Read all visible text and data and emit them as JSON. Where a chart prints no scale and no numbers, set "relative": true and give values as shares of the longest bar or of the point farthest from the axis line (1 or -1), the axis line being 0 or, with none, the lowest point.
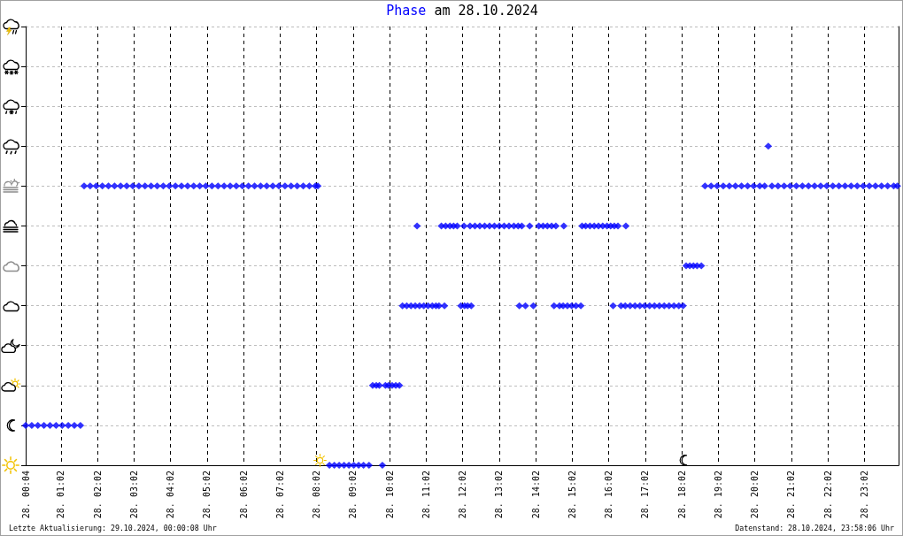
{
  "chart_data": {
    "type": "scatter",
    "title": "Phase am 28.10.2024",
    "color": "#0000ff",
    "marker": "diamond",
    "grid": true,
    "relative": true,
    "xlim": [
      "2024-10-28T00:04",
      "2024-10-28T23:58"
    ],
    "xticks": [
      {
        "value": "2024-10-28T00:04",
        "label": "28. 00:04"
      },
      {
        "value": "2024-10-28T01:02",
        "label": "28. 01:02"
      },
      {
        "value": "2024-10-28T02:02",
        "label": "28. 02:02"
      },
      {
        "value": "2024-10-28T03:02",
        "label": "28. 03:02"
      },
      {
        "value": "2024-10-28T04:02",
        "label": "28. 04:02"
      },
      {
        "value": "2024-10-28T05:02",
        "label": "28. 05:02"
      },
      {
        "value": "2024-10-28T06:02",
        "label": "28. 06:02"
      },
      {
        "value": "2024-10-28T07:02",
        "label": "28. 07:02"
      },
      {
        "value": "2024-10-28T08:02",
        "label": "28. 08:02"
      },
      {
        "value": "2024-10-28T09:02",
        "label": "28. 09:02"
      },
      {
        "value": "2024-10-28T10:02",
        "label": "28. 10:02"
      },
      {
        "value": "2024-10-28T11:02",
        "label": "28. 11:02"
      },
      {
        "value": "2024-10-28T12:02",
        "label": "28. 12:02"
      },
      {
        "value": "2024-10-28T13:02",
        "label": "28. 13:02"
      },
      {
        "value": "2024-10-28T14:02",
        "label": "28. 14:02"
      },
      {
        "value": "2024-10-28T15:02",
        "label": "28. 15:02"
      },
      {
        "value": "2024-10-28T16:02",
        "label": "28. 16:02"
      },
      {
        "value": "2024-10-28T17:02",
        "label": "28. 17:02"
      },
      {
        "value": "2024-10-28T18:02",
        "label": "28. 18:02"
      },
      {
        "value": "2024-10-28T19:02",
        "label": "28. 19:02"
      },
      {
        "value": "2024-10-28T20:02",
        "label": "28. 20:02"
      },
      {
        "value": "2024-10-28T21:02",
        "label": "28. 21:02"
      },
      {
        "value": "2024-10-28T22:02",
        "label": "28. 22:02"
      },
      {
        "value": "2024-10-28T23:02",
        "label": "28. 23:02"
      }
    ],
    "x": [
      "2024-10-28T00:04",
      "2024-10-28T00:14",
      "2024-10-28T00:24",
      "2024-10-28T00:34",
      "2024-10-28T00:44",
      "2024-10-28T00:54",
      "2024-10-28T01:04",
      "2024-10-28T01:14",
      "2024-10-28T01:24",
      "2024-10-28T01:34",
      "2024-10-28T01:40",
      "2024-10-28T01:50",
      "2024-10-28T02:00",
      "2024-10-28T02:10",
      "2024-10-28T02:20",
      "2024-10-28T02:30",
      "2024-10-28T02:40",
      "2024-10-28T02:50",
      "2024-10-28T03:00",
      "2024-10-28T03:10",
      "2024-10-28T03:20",
      "2024-10-28T03:30",
      "2024-10-28T03:40",
      "2024-10-28T03:50",
      "2024-10-28T04:00",
      "2024-10-28T04:10",
      "2024-10-28T04:20",
      "2024-10-28T04:30",
      "2024-10-28T04:40",
      "2024-10-28T04:50",
      "2024-10-28T05:00",
      "2024-10-28T05:10",
      "2024-10-28T05:20",
      "2024-10-28T05:30",
      "2024-10-28T05:40",
      "2024-10-28T05:50",
      "2024-10-28T06:00",
      "2024-10-28T06:10",
      "2024-10-28T06:20",
      "2024-10-28T06:30",
      "2024-10-28T06:40",
      "2024-10-28T06:50",
      "2024-10-28T07:00",
      "2024-10-28T07:10",
      "2024-10-28T07:20",
      "2024-10-28T07:30",
      "2024-10-28T07:40",
      "2024-10-28T07:50",
      "2024-10-28T08:00",
      "2024-10-28T08:04",
      "2024-10-28T08:23",
      "2024-10-28T08:31",
      "2024-10-28T08:39",
      "2024-10-28T08:47",
      "2024-10-28T08:55",
      "2024-10-28T09:03",
      "2024-10-28T09:11",
      "2024-10-28T09:19",
      "2024-10-28T09:28",
      "2024-10-28T09:34",
      "2024-10-28T09:40",
      "2024-10-28T09:45",
      "2024-10-28T09:50",
      "2024-10-28T09:55",
      "2024-10-28T10:00",
      "2024-10-28T10:06",
      "2024-10-28T10:12",
      "2024-10-28T10:18",
      "2024-10-28T10:23",
      "2024-10-28T10:30",
      "2024-10-28T10:37",
      "2024-10-28T10:44",
      "2024-10-28T10:47",
      "2024-10-28T10:51",
      "2024-10-28T10:58",
      "2024-10-28T11:05",
      "2024-10-28T11:12",
      "2024-10-28T11:18",
      "2024-10-28T11:23",
      "2024-10-28T11:27",
      "2024-10-28T11:32",
      "2024-10-28T11:34",
      "2024-10-28T11:41",
      "2024-10-28T11:47",
      "2024-10-28T11:53",
      "2024-10-28T11:59",
      "2024-10-28T12:04",
      "2024-10-28T12:05",
      "2024-10-28T12:10",
      "2024-10-28T12:14",
      "2024-10-28T12:16",
      "2024-10-28T12:22",
      "2024-10-28T12:30",
      "2024-10-28T12:38",
      "2024-10-28T12:46",
      "2024-10-28T12:54",
      "2024-10-28T13:02",
      "2024-10-28T13:10",
      "2024-10-28T13:18",
      "2024-10-28T13:26",
      "2024-10-28T13:33",
      "2024-10-28T13:35",
      "2024-10-28T13:39",
      "2024-10-28T13:45",
      "2024-10-28T13:52",
      "2024-10-28T13:58",
      "2024-10-28T14:07",
      "2024-10-28T14:14",
      "2024-10-28T14:21",
      "2024-10-28T14:28",
      "2024-10-28T14:32",
      "2024-10-28T14:35",
      "2024-10-28T14:41",
      "2024-10-28T14:47",
      "2024-10-28T14:48",
      "2024-10-28T14:54",
      "2024-10-28T15:01",
      "2024-10-28T15:08",
      "2024-10-28T15:16",
      "2024-10-28T15:18",
      "2024-10-28T15:24",
      "2024-10-28T15:31",
      "2024-10-28T15:38",
      "2024-10-28T15:45",
      "2024-10-28T15:52",
      "2024-10-28T15:59",
      "2024-10-28T16:05",
      "2024-10-28T16:09",
      "2024-10-28T16:11",
      "2024-10-28T16:17",
      "2024-10-28T16:22",
      "2024-10-28T16:29",
      "2024-10-28T16:30",
      "2024-10-28T16:37",
      "2024-10-28T16:45",
      "2024-10-28T16:53",
      "2024-10-28T17:01",
      "2024-10-28T17:09",
      "2024-10-28T17:17",
      "2024-10-28T17:25",
      "2024-10-28T17:33",
      "2024-10-28T17:41",
      "2024-10-28T17:49",
      "2024-10-28T17:57",
      "2024-10-28T18:04",
      "2024-10-28T18:09",
      "2024-10-28T18:15",
      "2024-10-28T18:21",
      "2024-10-28T18:27",
      "2024-10-28T18:34",
      "2024-10-28T18:40",
      "2024-10-28T18:50",
      "2024-10-28T19:00",
      "2024-10-28T19:10",
      "2024-10-28T19:20",
      "2024-10-28T19:30",
      "2024-10-28T19:40",
      "2024-10-28T19:50",
      "2024-10-28T20:00",
      "2024-10-28T20:10",
      "2024-10-28T20:18",
      "2024-10-28T20:24",
      "2024-10-28T20:30",
      "2024-10-28T20:40",
      "2024-10-28T20:50",
      "2024-10-28T21:00",
      "2024-10-28T21:10",
      "2024-10-28T21:20",
      "2024-10-28T21:30",
      "2024-10-28T21:40",
      "2024-10-28T21:50",
      "2024-10-28T22:00",
      "2024-10-28T22:10",
      "2024-10-28T22:20",
      "2024-10-28T22:30",
      "2024-10-28T22:40",
      "2024-10-28T22:50",
      "2024-10-28T23:00",
      "2024-10-28T23:10",
      "2024-10-28T23:20",
      "2024-10-28T23:30",
      "2024-10-28T23:40",
      "2024-10-28T23:50",
      "2024-10-28T23:56"
    ],
    "values": [
      0.125,
      0.125,
      0.125,
      0.125,
      0.125,
      0.125,
      0.125,
      0.125,
      0.125,
      0.125,
      0.875,
      0.875,
      0.875,
      0.875,
      0.875,
      0.875,
      0.875,
      0.875,
      0.875,
      0.875,
      0.875,
      0.875,
      0.875,
      0.875,
      0.875,
      0.875,
      0.875,
      0.875,
      0.875,
      0.875,
      0.875,
      0.875,
      0.875,
      0.875,
      0.875,
      0.875,
      0.875,
      0.875,
      0.875,
      0.875,
      0.875,
      0.875,
      0.875,
      0.875,
      0.875,
      0.875,
      0.875,
      0.875,
      0.875,
      0.875,
      0,
      0,
      0,
      0,
      0,
      0,
      0,
      0,
      0,
      0.25,
      0.25,
      0.25,
      0,
      0.25,
      0.25,
      0.25,
      0.25,
      0.25,
      0.5,
      0.5,
      0.5,
      0.5,
      0.75,
      0.5,
      0.5,
      0.5,
      0.5,
      0.5,
      0.5,
      0.75,
      0.5,
      0.75,
      0.75,
      0.75,
      0.75,
      0.5,
      0.75,
      0.5,
      0.5,
      0.75,
      0.5,
      0.75,
      0.75,
      0.75,
      0.75,
      0.75,
      0.75,
      0.75,
      0.75,
      0.75,
      0.75,
      0.5,
      0.75,
      0.5,
      0.75,
      0.5,
      0.75,
      0.75,
      0.75,
      0.75,
      0.5,
      0.75,
      0.5,
      0.5,
      0.75,
      0.5,
      0.5,
      0.5,
      0.5,
      0.75,
      0.75,
      0.75,
      0.75,
      0.75,
      0.75,
      0.75,
      0.75,
      0.5,
      0.75,
      0.75,
      0.5,
      0.5,
      0.75,
      0.5,
      0.5,
      0.5,
      0.5,
      0.5,
      0.5,
      0.5,
      0.5,
      0.5,
      0.5,
      0.5,
      0.5,
      0.625,
      0.625,
      0.625,
      0.625,
      0.625,
      0.875,
      0.875,
      0.875,
      0.875,
      0.875,
      0.875,
      0.875,
      0.875,
      0.875,
      0.875,
      0.875,
      1,
      0.875,
      0.875,
      0.875,
      0.875,
      0.875,
      0.875,
      0.875,
      0.875,
      0.875,
      0.875,
      0.875,
      0.875,
      0.875,
      0.875,
      0.875,
      0.875,
      0.875,
      0.875,
      0.875,
      0.875,
      0.875,
      0.875
    ],
    "annotations": [
      "Letzte Aktualisierung: 29.10.2024, 00:00:08 Uhr",
      "Datenstand: 28.10.2024, 23:58:06 Uhr"
    ]
  }
}
